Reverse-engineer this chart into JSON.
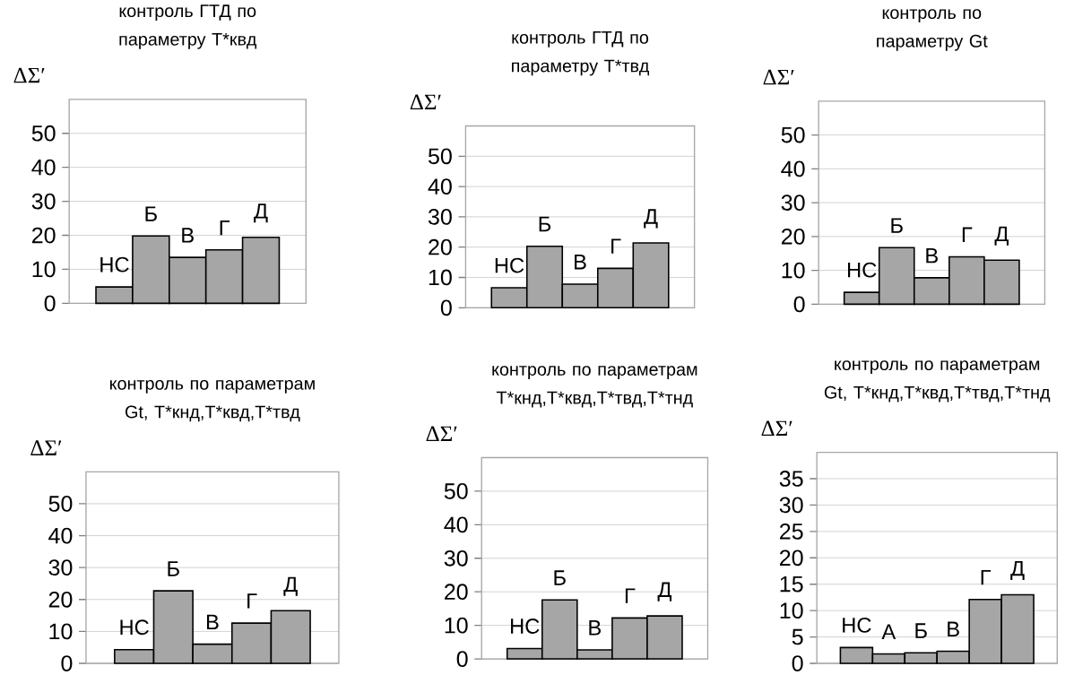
{
  "chart_data": [
    {
      "type": "bar",
      "title": "контроль ГТД по параметру T*квд",
      "ylabel": "ΔΣ′",
      "categories": [
        "НС",
        "Б",
        "В",
        "Г",
        "Д"
      ],
      "values": [
        4.8,
        19.8,
        13.5,
        15.7,
        19.4
      ],
      "color": "#a6a6a6",
      "ylim": [
        0,
        60
      ],
      "yticks": [
        0,
        10,
        20,
        30,
        40,
        50
      ],
      "grid": "y"
    },
    {
      "type": "bar",
      "title": "контроль ГТД по параметру T*твд",
      "ylabel": "ΔΣ′",
      "categories": [
        "НС",
        "Б",
        "В",
        "Г",
        "Д"
      ],
      "values": [
        6.6,
        20.3,
        7.8,
        13.0,
        21.4
      ],
      "color": "#a6a6a6",
      "ylim": [
        0,
        60
      ],
      "yticks": [
        0,
        10,
        20,
        30,
        40,
        50
      ],
      "grid": "y"
    },
    {
      "type": "bar",
      "title": "контроль по параметру Gt",
      "ylabel": "ΔΣ′",
      "categories": [
        "НС",
        "Б",
        "В",
        "Г",
        "Д"
      ],
      "values": [
        3.5,
        16.7,
        7.8,
        14.0,
        13.0
      ],
      "color": "#a6a6a6",
      "ylim": [
        0,
        60
      ],
      "yticks": [
        0,
        10,
        20,
        30,
        40,
        50
      ],
      "grid": "y"
    },
    {
      "type": "bar",
      "title": "контроль по параметрам Gt, T*кнд,T*квд,T*твд",
      "ylabel": "ΔΣ′",
      "categories": [
        "НС",
        "Б",
        "В",
        "Г",
        "Д"
      ],
      "values": [
        4.3,
        22.7,
        6.0,
        12.6,
        16.5
      ],
      "color": "#a6a6a6",
      "ylim": [
        0,
        60
      ],
      "yticks": [
        0,
        10,
        20,
        30,
        40,
        50
      ],
      "grid": "y"
    },
    {
      "type": "bar",
      "title": "контроль по параметрам T*кнд,T*квд,T*твд,T*тнд",
      "ylabel": "ΔΣ′",
      "categories": [
        "НС",
        "Б",
        "В",
        "Г",
        "Д"
      ],
      "values": [
        3.1,
        17.6,
        2.7,
        12.2,
        12.8
      ],
      "color": "#a6a6a6",
      "ylim": [
        0,
        60
      ],
      "yticks": [
        0,
        10,
        20,
        30,
        40,
        50
      ],
      "grid": "y"
    },
    {
      "type": "bar",
      "title": "контроль по параметрам Gt, T*кнд,T*квд,T*твд,T*тнд",
      "ylabel": "ΔΣ′",
      "categories": [
        "НС",
        "А",
        "Б",
        "В",
        "Г",
        "Д"
      ],
      "values": [
        3.0,
        1.8,
        2.0,
        2.3,
        12.1,
        13.0
      ],
      "color": "#a6a6a6",
      "ylim": [
        0,
        40
      ],
      "yticks": [
        0,
        5,
        10,
        15,
        20,
        25,
        30,
        35
      ],
      "grid": "y"
    }
  ]
}
